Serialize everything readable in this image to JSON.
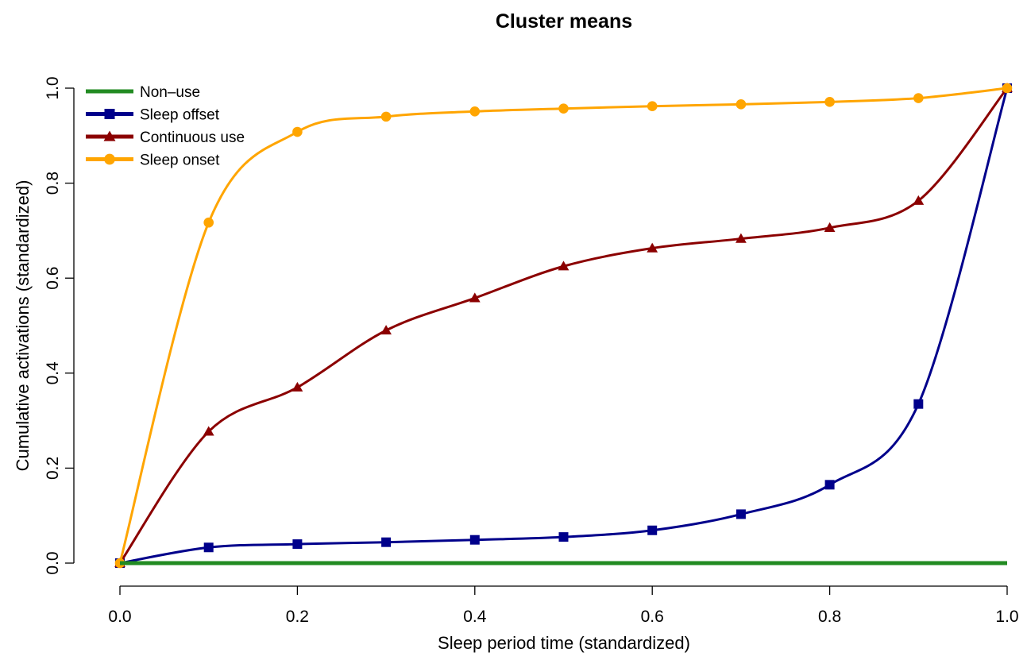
{
  "chart_data": {
    "type": "line",
    "title": "Cluster means",
    "xlabel": "Sleep period time (standardized)",
    "ylabel": "Cumulative activations (standardized)",
    "xlim": [
      0,
      1
    ],
    "ylim": [
      0,
      1
    ],
    "xticks": [
      "0.0",
      "0.2",
      "0.4",
      "0.6",
      "0.8",
      "1.0"
    ],
    "yticks": [
      "0.0",
      "0.2",
      "0.4",
      "0.6",
      "0.8",
      "1.0"
    ],
    "grid": false,
    "legend": "top-left",
    "x": [
      0.0,
      0.1,
      0.2,
      0.3,
      0.4,
      0.5,
      0.6,
      0.7,
      0.8,
      0.9,
      1.0
    ],
    "series": [
      {
        "name": "Non–use",
        "color": "#228B22",
        "marker": "none",
        "values": [
          0,
          0,
          0,
          0,
          0,
          0,
          0,
          0,
          0,
          0,
          0
        ]
      },
      {
        "name": "Sleep offset",
        "color": "#00008B",
        "marker": "square",
        "values": [
          0.0,
          0.033,
          0.04,
          0.044,
          0.049,
          0.055,
          0.069,
          0.103,
          0.165,
          0.335,
          1.0
        ]
      },
      {
        "name": "Continuous use",
        "color": "#8B0000",
        "marker": "triangle",
        "values": [
          0.0,
          0.277,
          0.37,
          0.49,
          0.558,
          0.625,
          0.663,
          0.683,
          0.706,
          0.763,
          1.0
        ]
      },
      {
        "name": "Sleep onset",
        "color": "#FFA500",
        "marker": "circle",
        "values": [
          0.0,
          0.717,
          0.908,
          0.94,
          0.951,
          0.957,
          0.962,
          0.966,
          0.971,
          0.979,
          1.0
        ]
      }
    ]
  }
}
